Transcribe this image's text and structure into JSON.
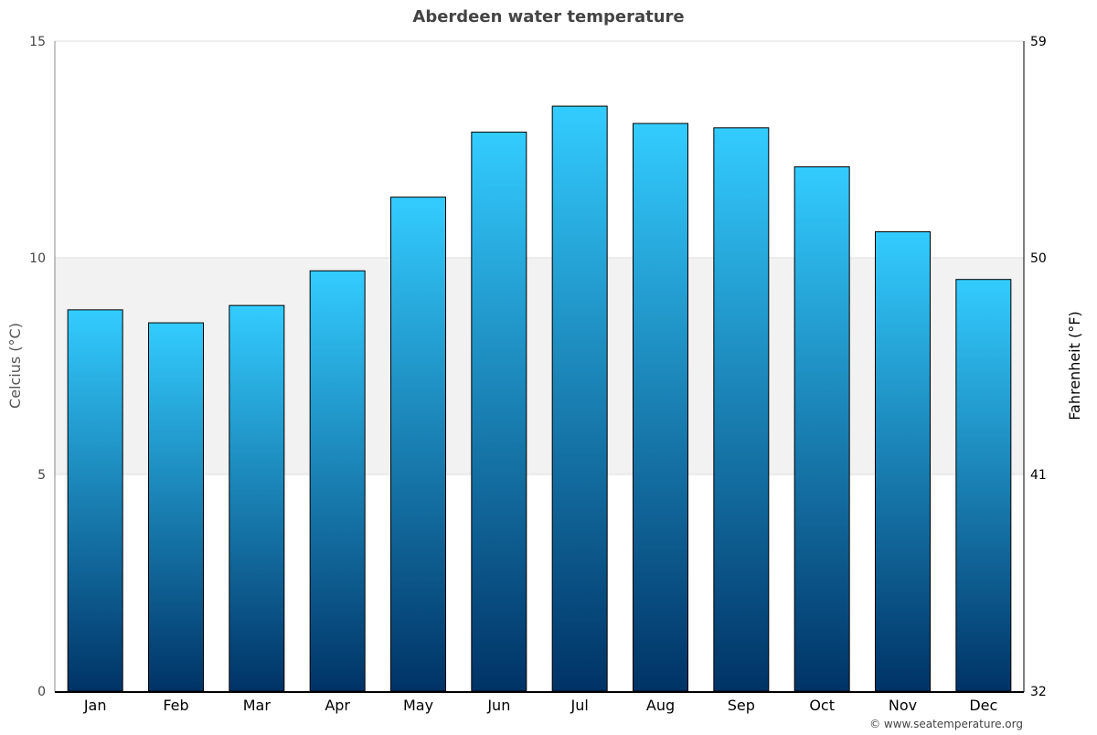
{
  "chart_data": {
    "type": "bar",
    "title": "Aberdeen water temperature",
    "ylabel": "Celcius (°C)",
    "y2label": "Fahrenheit (°F)",
    "categories": [
      "Jan",
      "Feb",
      "Mar",
      "Apr",
      "May",
      "Jun",
      "Jul",
      "Aug",
      "Sep",
      "Oct",
      "Nov",
      "Dec"
    ],
    "values": [
      8.8,
      8.5,
      8.9,
      9.7,
      11.4,
      12.9,
      13.5,
      13.1,
      13.0,
      12.1,
      10.6,
      9.5
    ],
    "ylim": [
      0,
      15
    ],
    "yticks": [
      "0",
      "5",
      "10",
      "15"
    ],
    "y2ticks": [
      "32",
      "41",
      "50",
      "59"
    ],
    "shaded_band": [
      5,
      10
    ],
    "grid": true,
    "colors": {
      "bar_top": "#33ccff",
      "bar_bottom": "#003366",
      "band": "#f2f2f2"
    }
  },
  "footer": {
    "credit": "© www.seatemperature.org"
  }
}
